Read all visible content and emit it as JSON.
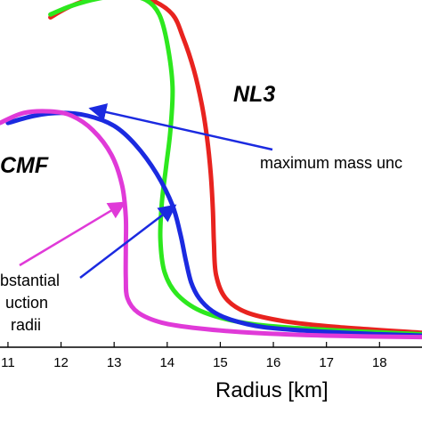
{
  "chart_data": {
    "type": "line",
    "title": "",
    "xlabel": "Radius [km]",
    "ylabel": "",
    "xlim": [
      10.85,
      18.8
    ],
    "ylim": [
      0,
      2.4
    ],
    "xticks": [
      11,
      12,
      13,
      14,
      15,
      16,
      17,
      18
    ],
    "x_tick_labels": [
      "11",
      "12",
      "13",
      "14",
      "15",
      "16",
      "17",
      "18"
    ],
    "grid": false,
    "series": [
      {
        "name": "NL3",
        "color": "#e8231f",
        "x": [
          11.8,
          12.2,
          12.7,
          13.2,
          13.7,
          14.1,
          14.3,
          14.5,
          14.65,
          14.75,
          14.82,
          14.86,
          14.88,
          14.92,
          15.1,
          15.5,
          16.2,
          17.2,
          18.8
        ],
        "y": [
          2.28,
          2.36,
          2.42,
          2.44,
          2.4,
          2.3,
          2.14,
          1.92,
          1.68,
          1.45,
          1.2,
          0.95,
          0.72,
          0.5,
          0.34,
          0.24,
          0.18,
          0.14,
          0.1
        ]
      },
      {
        "name": "",
        "color": "#2de81e",
        "x": [
          11.8,
          12.2,
          12.7,
          13.2,
          13.6,
          13.85,
          14.0,
          14.1,
          14.06,
          13.98,
          13.9,
          13.87,
          13.95,
          14.2,
          14.7,
          15.6,
          17.0,
          18.8
        ],
        "y": [
          2.3,
          2.36,
          2.41,
          2.43,
          2.4,
          2.3,
          2.1,
          1.8,
          1.5,
          1.25,
          1.0,
          0.75,
          0.52,
          0.36,
          0.24,
          0.16,
          0.12,
          0.09
        ]
      },
      {
        "name": "",
        "color": "#1b2ae0",
        "x": [
          11.0,
          11.5,
          12.0,
          12.5,
          13.0,
          13.4,
          13.8,
          14.1,
          14.25,
          14.35,
          14.45,
          14.6,
          14.85,
          15.2,
          15.8,
          16.8,
          18.0,
          18.8
        ],
        "y": [
          1.55,
          1.6,
          1.62,
          1.6,
          1.53,
          1.4,
          1.2,
          0.98,
          0.78,
          0.6,
          0.45,
          0.34,
          0.25,
          0.19,
          0.14,
          0.11,
          0.09,
          0.08
        ]
      },
      {
        "name": "CMF",
        "color": "#e03ad8",
        "x": [
          10.85,
          11.3,
          11.8,
          12.2,
          12.6,
          12.95,
          13.15,
          13.22,
          13.22,
          13.22,
          13.25,
          13.45,
          13.9,
          14.6,
          15.6,
          17.0,
          18.8
        ],
        "y": [
          1.55,
          1.62,
          1.63,
          1.6,
          1.5,
          1.33,
          1.12,
          0.9,
          0.68,
          0.48,
          0.34,
          0.24,
          0.17,
          0.13,
          0.1,
          0.08,
          0.07
        ]
      }
    ],
    "annotations": [
      {
        "text": "NL3",
        "style": "bold-italic"
      },
      {
        "text": "CMF",
        "style": "bold-italic"
      },
      {
        "text": "maximum mass unc",
        "arrow_color": "#1b2ae0",
        "points_to": [
          12.55,
          1.65
        ]
      },
      {
        "text_lines": [
          "bstantial",
          "uction",
          "radii"
        ],
        "arrow_colors": [
          "#e03ad8",
          "#1b2ae0"
        ],
        "points_to": [
          [
            13.2,
            1.0
          ],
          [
            14.15,
            0.98
          ]
        ]
      }
    ]
  }
}
